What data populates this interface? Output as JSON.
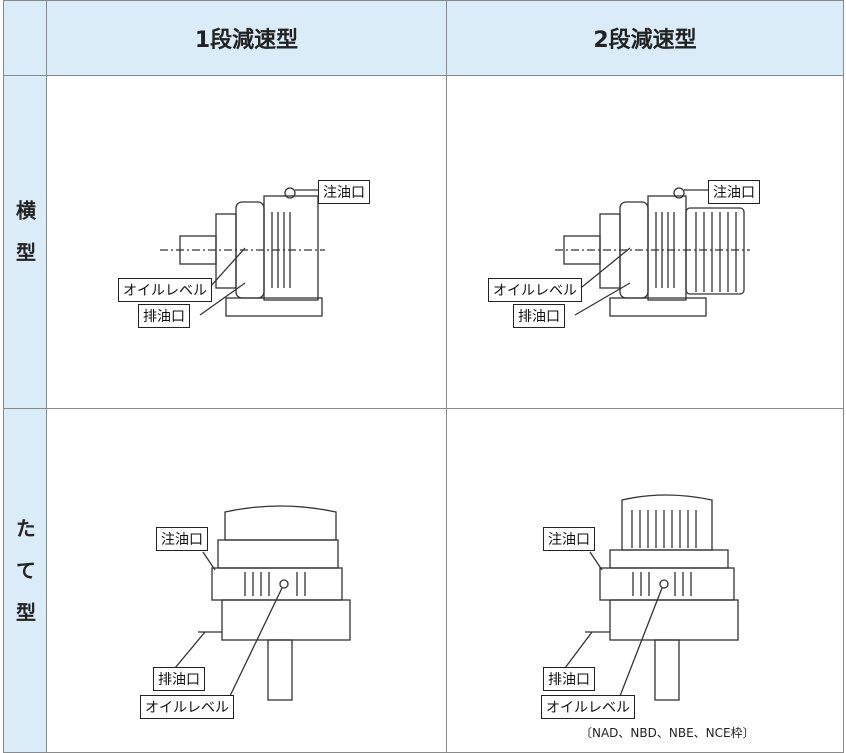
{
  "table": {
    "header": {
      "columns": [
        "1段減速型",
        "2段減速型"
      ]
    },
    "rows": [
      {
        "label": "横型",
        "cells": [
          {
            "callouts": [
              "注油口",
              "オイルレベル",
              "排油口"
            ]
          },
          {
            "callouts": [
              "注油口",
              "オイルレベル",
              "排油口"
            ]
          }
        ]
      },
      {
        "label": "たて型",
        "cells": [
          {
            "callouts": [
              "注油口",
              "排油口",
              "オイルレベル"
            ]
          },
          {
            "callouts": [
              "注油口",
              "排油口",
              "オイルレベル"
            ],
            "note": "〔NAD、NBD、NBE、NCE枠〕"
          }
        ]
      }
    ]
  }
}
